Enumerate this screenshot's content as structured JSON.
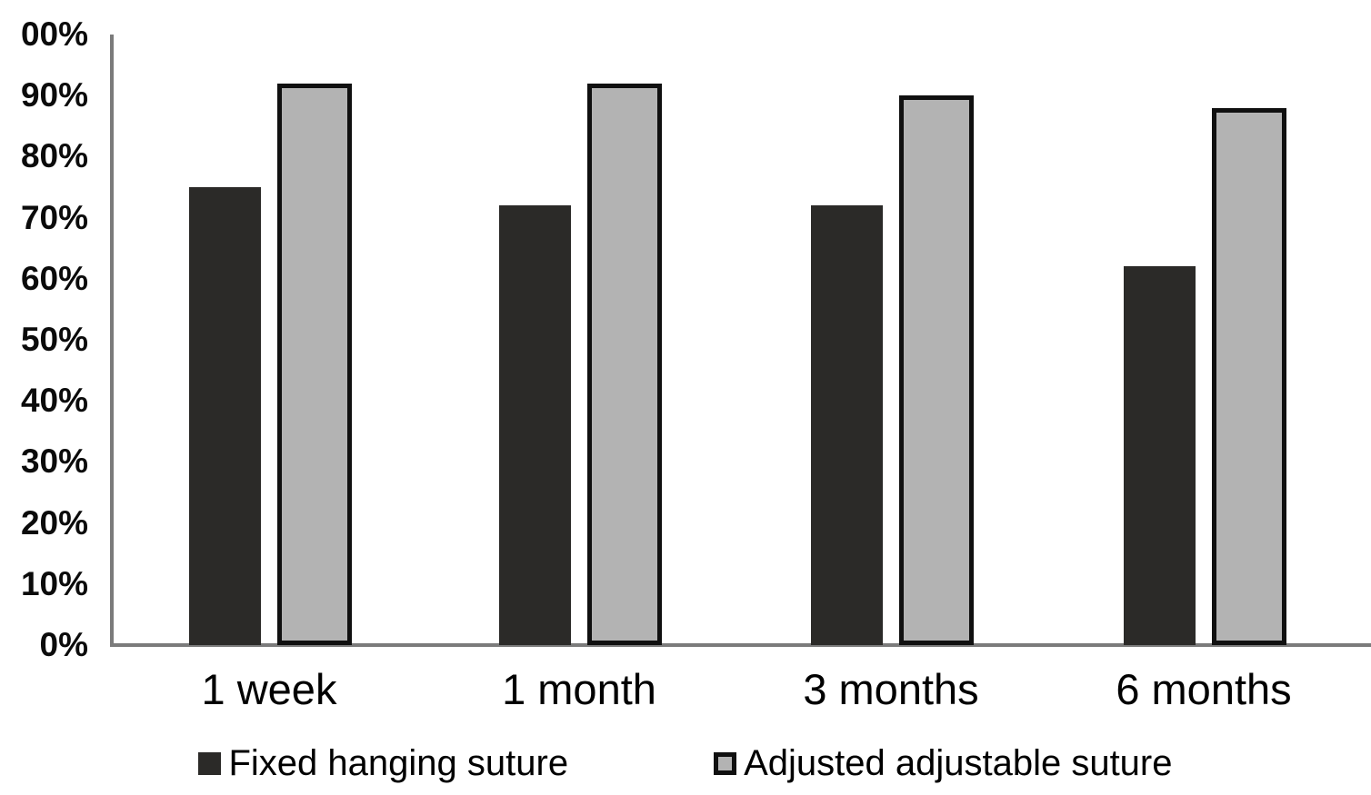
{
  "chart_data": {
    "type": "bar",
    "title": "",
    "xlabel": "",
    "ylabel": "",
    "categories": [
      "1 week",
      "1 month",
      "3 months",
      "6 months"
    ],
    "series": [
      {
        "name": "Fixed hanging suture",
        "values": [
          75,
          72,
          72,
          62
        ],
        "color": "#2b2a28",
        "border": "#2b2a28"
      },
      {
        "name": "Adjusted adjustable suture",
        "values": [
          92,
          92,
          90,
          88
        ],
        "color": "#b3b3b3",
        "border": "#101010"
      }
    ],
    "ylim": [
      0,
      100
    ],
    "y_tick_step": 10,
    "y_tick_labels_visible": [
      "00%",
      "90%",
      "80%",
      "70%",
      "60%",
      "50%",
      "40%",
      "30%",
      "20%",
      "10%",
      "0%"
    ],
    "grid": false,
    "legend_position": "bottom",
    "axis_color": "#7b7b7b",
    "text_color": "#000000",
    "background": "#ffffff"
  }
}
